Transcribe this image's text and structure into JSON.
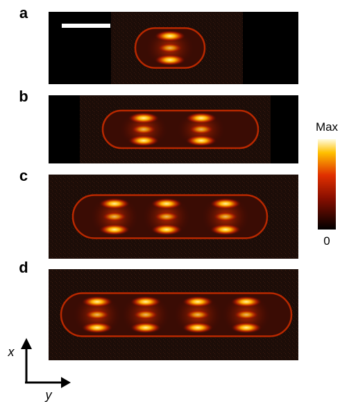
{
  "panels": [
    {
      "label": "a"
    },
    {
      "label": "b"
    },
    {
      "label": "c"
    },
    {
      "label": "d"
    }
  ],
  "colorbar": {
    "max_label": "Max",
    "min_label": "0"
  },
  "axes": {
    "x": "x",
    "y": "y"
  }
}
